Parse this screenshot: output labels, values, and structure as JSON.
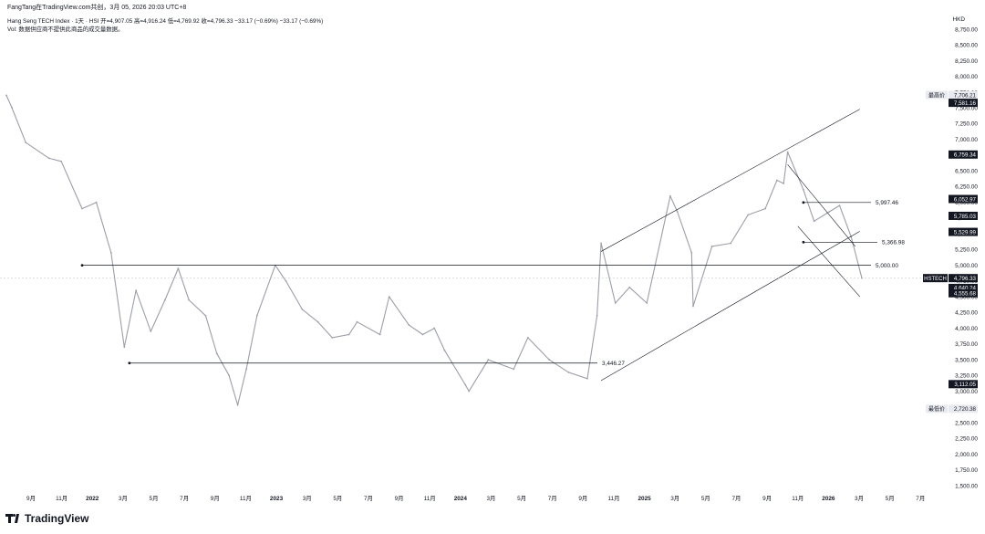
{
  "header": {
    "publisher": "FangTang在TradingView.com共创，3月 05, 2026 20:03 UTC+8",
    "info": "Hang Seng TECH Index · 1天 · HSI  开=4,907.05  高=4,916.24  低=4,769.92  收=4,796.33  −33.17 (−0.69%)  −33.17 (−0.69%)",
    "vol": "Vol: 数据供应商不提供此商品的成交量数据。",
    "currency": "HKD"
  },
  "branding": {
    "name": "TradingView",
    "icon": "tradingview-logo-icon"
  },
  "chart_data": {
    "type": "line",
    "symbol": "HSTECH",
    "ylim": [
      1450,
      8800
    ],
    "ytick_labels": [
      "8,750.00",
      "8,500.00",
      "8,250.00",
      "8,000.00",
      "7,750.00",
      "7,500.00",
      "7,250.00",
      "7,000.00",
      "6,750.00",
      "6,500.00",
      "6,250.00",
      "6,000.00",
      "5,750.00",
      "5,500.00",
      "5,250.00",
      "5,000.00",
      "4,750.00",
      "4,500.00",
      "4,250.00",
      "4,000.00",
      "3,750.00",
      "3,500.00",
      "3,250.00",
      "3,000.00",
      "2,750.00",
      "2,500.00",
      "2,250.00",
      "2,000.00",
      "1,750.00",
      "1,500.00"
    ],
    "xtick_labels": [
      "9月",
      "11月",
      "2022",
      "3月",
      "5月",
      "7月",
      "9月",
      "11月",
      "2023",
      "3月",
      "5月",
      "7月",
      "9月",
      "11月",
      "2024",
      "3月",
      "5月",
      "7月",
      "9月",
      "11月",
      "2025",
      "3月",
      "5月",
      "7月",
      "9月",
      "11月",
      "2026",
      "3月",
      "5月",
      "7月"
    ],
    "bold_xticks": [
      "2022",
      "2023",
      "2024",
      "2025",
      "2026"
    ],
    "x": [
      "2021-07-26",
      "2021-08-06",
      "2021-09-02",
      "2021-10-18",
      "2021-11-11",
      "2021-12-22",
      "2022-01-19",
      "2022-02-17",
      "2022-03-15",
      "2022-04-07",
      "2022-05-06",
      "2022-06-03",
      "2022-06-29",
      "2022-07-20",
      "2022-08-22",
      "2022-09-13",
      "2022-10-07",
      "2022-10-24",
      "2022-11-10",
      "2022-12-01",
      "2023-01-06",
      "2023-01-27",
      "2023-02-28",
      "2023-03-31",
      "2023-04-28",
      "2023-05-31",
      "2023-06-16",
      "2023-07-31",
      "2023-08-18",
      "2023-09-26",
      "2023-10-23",
      "2023-11-15",
      "2023-12-05",
      "2024-01-15",
      "2024-01-22",
      "2024-02-29",
      "2024-04-19",
      "2024-05-17",
      "2024-06-28",
      "2024-08-05",
      "2024-09-11",
      "2024-09-30",
      "2024-10-08",
      "2024-11-05",
      "2024-12-03",
      "2025-01-06",
      "2025-02-21",
      "2025-03-07",
      "2025-04-04",
      "2025-04-07",
      "2025-05-14",
      "2025-06-20",
      "2025-07-24",
      "2025-08-27",
      "2025-09-19",
      "2025-10-02",
      "2025-10-10",
      "2025-11-10",
      "2025-12-01",
      "2025-12-31",
      "2026-01-20",
      "2026-02-12",
      "2026-03-05"
    ],
    "series": [
      {
        "values": [
          7700,
          7500,
          6950,
          6700,
          6650,
          5900,
          6000,
          5200,
          3700,
          4600,
          3950,
          4450,
          4950,
          4450,
          4200,
          3600,
          3250,
          2780,
          3350,
          4200,
          5000,
          4750,
          4300,
          4100,
          3850,
          3900,
          4100,
          3900,
          4500,
          4050,
          3900,
          4000,
          3650,
          3100,
          3000,
          3500,
          3350,
          3850,
          3500,
          3300,
          3200,
          4200,
          5350,
          4400,
          4650,
          4400,
          6100,
          5850,
          5200,
          4350,
          5300,
          5350,
          5800,
          5900,
          6350,
          6300,
          6800,
          6200,
          5700,
          5850,
          5950,
          5450,
          4796.33
        ]
      }
    ],
    "horizontal_levels": [
      {
        "value": 5000.0,
        "label": "5,000.00",
        "start": "2021-12-22"
      },
      {
        "value": 3446.27,
        "label": "3,446.27",
        "start": "2022-03-25"
      },
      {
        "value": 5997.46,
        "label": "5,997.46",
        "start": "2025-11-10"
      },
      {
        "value": 5366.98,
        "label": "5,366.98",
        "start": "2025-11-10"
      }
    ],
    "trend_lines": [
      {
        "from": [
          "2024-10-08",
          5220
        ],
        "to": [
          "2026-03-01",
          7480
        ]
      },
      {
        "from": [
          "2024-10-08",
          3170
        ],
        "to": [
          "2026-03-01",
          5540
        ]
      },
      {
        "from": [
          "2025-10-10",
          6600
        ],
        "to": [
          "2026-02-20",
          5300
        ]
      },
      {
        "from": [
          "2025-10-30",
          5620
        ],
        "to": [
          "2026-03-01",
          4500
        ]
      }
    ],
    "price_markers": [
      {
        "label": "最高价",
        "value": 7706.21,
        "text": "7,706.21",
        "style": "plain"
      },
      {
        "value": 7581.16,
        "text": "7,581.16",
        "style": "dark"
      },
      {
        "value": 6759.34,
        "text": "6,759.34",
        "style": "dark"
      },
      {
        "value": 6052.97,
        "text": "6,052.97",
        "style": "dark"
      },
      {
        "value": 5785.03,
        "text": "5,785.03",
        "style": "dark"
      },
      {
        "value": 5529.99,
        "text": "5,529.99",
        "style": "dark"
      },
      {
        "label": "HSTECH",
        "value": 4796.33,
        "text": "4,796.33",
        "style": "dark"
      },
      {
        "value": 4640.24,
        "text": "4,640.24",
        "style": "dark"
      },
      {
        "value": 4555.68,
        "text": "4,555.68",
        "style": "dark"
      },
      {
        "value": 3112.05,
        "text": "3,112.05",
        "style": "dark"
      },
      {
        "label": "最低价",
        "value": 2720.38,
        "text": "2,720.38",
        "style": "plain"
      }
    ],
    "colors": {
      "price": "#9c9ea8",
      "line": "#131722",
      "axis_text": "#131722",
      "dark_label": "#131722",
      "crosshair": "#b2b5be"
    }
  }
}
